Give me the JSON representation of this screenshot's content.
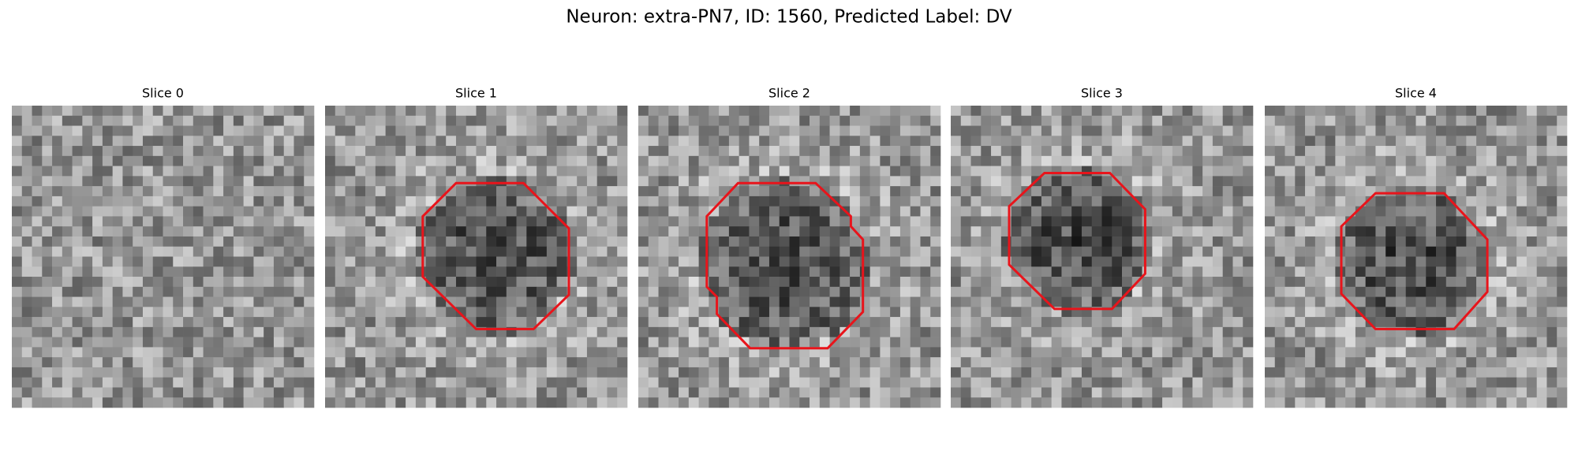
{
  "title": "Neuron: extra-PN7, ID: 1560, Predicted Label: DV",
  "panels": [
    {
      "title": "Slice 0"
    },
    {
      "title": "Slice 1"
    },
    {
      "title": "Slice 2"
    },
    {
      "title": "Slice 3"
    },
    {
      "title": "Slice 4"
    }
  ]
}
